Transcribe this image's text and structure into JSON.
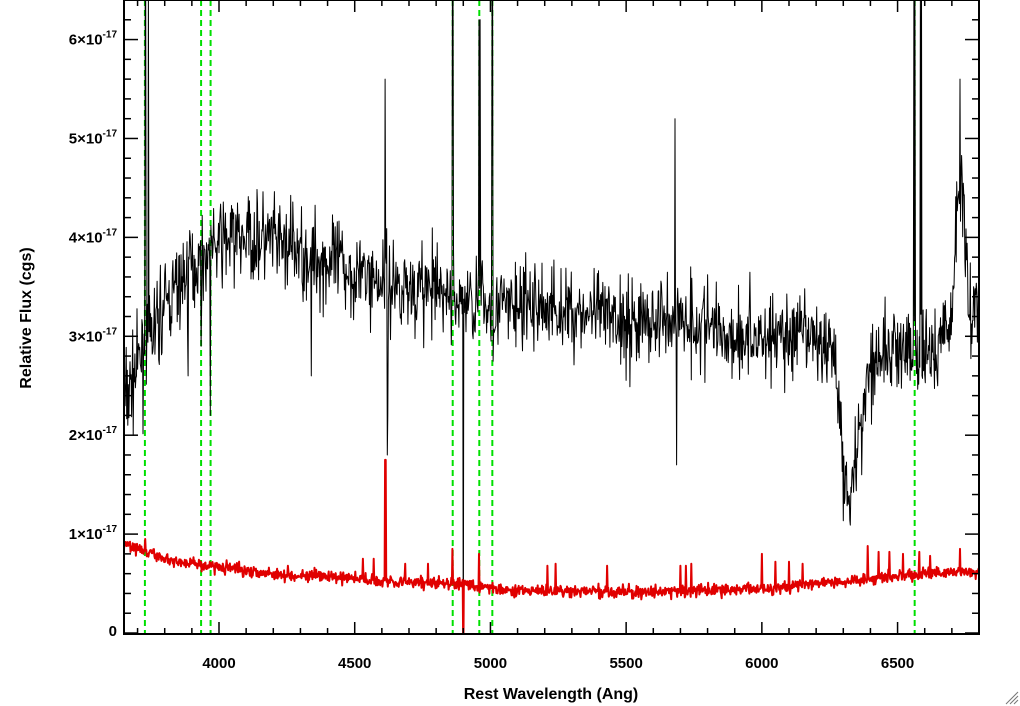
{
  "chart_data": {
    "type": "line",
    "title": "",
    "xlabel": "Rest Wavelength (Ang)",
    "ylabel": "Relative Flux (cgs)",
    "xlim": [
      3650,
      6800
    ],
    "ylim": [
      -1e-19,
      6.4e-17
    ],
    "x_ticks": [
      4000,
      4500,
      5000,
      5500,
      6000,
      6500
    ],
    "x_tick_labels": [
      "4000",
      "4500",
      "5000",
      "5500",
      "6000",
      "6500"
    ],
    "y_ticks": [
      0,
      1e-17,
      2e-17,
      3e-17,
      4e-17,
      5e-17,
      6e-17
    ],
    "y_tick_labels": [
      {
        "mant": "0",
        "exp": ""
      },
      {
        "mant": "1×10",
        "exp": "-17"
      },
      {
        "mant": "2×10",
        "exp": "-17"
      },
      {
        "mant": "3×10",
        "exp": "-17"
      },
      {
        "mant": "4×10",
        "exp": "-17"
      },
      {
        "mant": "5×10",
        "exp": "-17"
      },
      {
        "mant": "6×10",
        "exp": "-17"
      }
    ],
    "grid": false,
    "colors": {
      "spectrum": "#000000",
      "error": "#e00000",
      "lines": "#00e000"
    },
    "emission_lines": [
      3727,
      3934,
      3969,
      4861,
      4959,
      5007,
      6563
    ],
    "series": [
      {
        "role": "spectrum",
        "noise_sigma": 0.38,
        "continuum": [
          [
            3650,
            2.3
          ],
          [
            3700,
            2.7
          ],
          [
            3750,
            3.0
          ],
          [
            3800,
            3.3
          ],
          [
            3850,
            3.5
          ],
          [
            3900,
            3.7
          ],
          [
            3950,
            3.8
          ],
          [
            4000,
            3.95
          ],
          [
            4100,
            4.0
          ],
          [
            4200,
            3.95
          ],
          [
            4300,
            3.85
          ],
          [
            4400,
            3.75
          ],
          [
            4500,
            3.65
          ],
          [
            4600,
            3.55
          ],
          [
            4700,
            3.5
          ],
          [
            4800,
            3.45
          ],
          [
            4900,
            3.4
          ],
          [
            5000,
            3.3
          ],
          [
            5100,
            3.3
          ],
          [
            5200,
            3.3
          ],
          [
            5300,
            3.25
          ],
          [
            5400,
            3.2
          ],
          [
            5500,
            3.15
          ],
          [
            5600,
            3.15
          ],
          [
            5700,
            3.2
          ],
          [
            5800,
            3.1
          ],
          [
            5900,
            3.0
          ],
          [
            6000,
            3.0
          ],
          [
            6100,
            3.0
          ],
          [
            6200,
            2.95
          ],
          [
            6250,
            2.9
          ],
          [
            6280,
            2.6
          ],
          [
            6300,
            1.6
          ],
          [
            6330,
            1.5
          ],
          [
            6360,
            2.0
          ],
          [
            6400,
            2.8
          ],
          [
            6450,
            2.8
          ],
          [
            6500,
            2.9
          ],
          [
            6550,
            2.8
          ],
          [
            6600,
            2.8
          ],
          [
            6650,
            2.9
          ],
          [
            6700,
            3.2
          ],
          [
            6720,
            4.3
          ],
          [
            6740,
            4.6
          ],
          [
            6760,
            3.3
          ],
          [
            6800,
            3.3
          ]
        ],
        "features": [
          [
            3727,
            6.5
          ],
          [
            3730,
            6.5
          ],
          [
            3740,
            6.5
          ],
          [
            3885,
            2.6
          ],
          [
            3933,
            2.9
          ],
          [
            3968,
            2.2
          ],
          [
            4340,
            2.6
          ],
          [
            4611,
            5.6
          ],
          [
            4613,
            3.8
          ],
          [
            4620,
            1.8
          ],
          [
            4622,
            2.2
          ],
          [
            4860,
            6.5
          ],
          [
            4862,
            6.5
          ],
          [
            4880,
            3.3
          ],
          [
            4900,
            -0.5
          ],
          [
            4958,
            6.2
          ],
          [
            4961,
            6.2
          ],
          [
            5005,
            6.5
          ],
          [
            5008,
            6.5
          ],
          [
            5680,
            5.2
          ],
          [
            5685,
            1.7
          ],
          [
            6560,
            6.5
          ],
          [
            6564,
            6.5
          ],
          [
            6583,
            6.5
          ],
          [
            6587,
            6.5
          ],
          [
            6730,
            5.6
          ]
        ]
      },
      {
        "role": "error",
        "noise_sigma": 0.05,
        "continuum": [
          [
            3650,
            0.9
          ],
          [
            3700,
            0.85
          ],
          [
            3800,
            0.75
          ],
          [
            3900,
            0.7
          ],
          [
            4000,
            0.67
          ],
          [
            4200,
            0.6
          ],
          [
            4400,
            0.57
          ],
          [
            4600,
            0.53
          ],
          [
            4800,
            0.5
          ],
          [
            4900,
            0.5
          ],
          [
            5000,
            0.45
          ],
          [
            5200,
            0.42
          ],
          [
            5400,
            0.42
          ],
          [
            5600,
            0.41
          ],
          [
            5800,
            0.43
          ],
          [
            6000,
            0.45
          ],
          [
            6200,
            0.5
          ],
          [
            6400,
            0.55
          ],
          [
            6600,
            0.6
          ],
          [
            6800,
            0.62
          ]
        ],
        "features": [
          [
            3727,
            0.95
          ],
          [
            4530,
            0.75
          ],
          [
            4570,
            0.75
          ],
          [
            4611,
            1.75
          ],
          [
            4614,
            1.75
          ],
          [
            4686,
            0.7
          ],
          [
            4770,
            0.7
          ],
          [
            4860,
            0.85
          ],
          [
            4900,
            -0.3
          ],
          [
            4957,
            0.8
          ],
          [
            5210,
            0.68
          ],
          [
            5240,
            0.7
          ],
          [
            5430,
            0.68
          ],
          [
            5700,
            0.68
          ],
          [
            5720,
            0.68
          ],
          [
            5740,
            0.7
          ],
          [
            6000,
            0.8
          ],
          [
            6050,
            0.72
          ],
          [
            6100,
            0.72
          ],
          [
            6150,
            0.7
          ],
          [
            6390,
            0.88
          ],
          [
            6430,
            0.82
          ],
          [
            6470,
            0.82
          ],
          [
            6520,
            0.8
          ],
          [
            6580,
            0.82
          ],
          [
            6620,
            0.78
          ],
          [
            6730,
            0.85
          ]
        ]
      }
    ]
  }
}
